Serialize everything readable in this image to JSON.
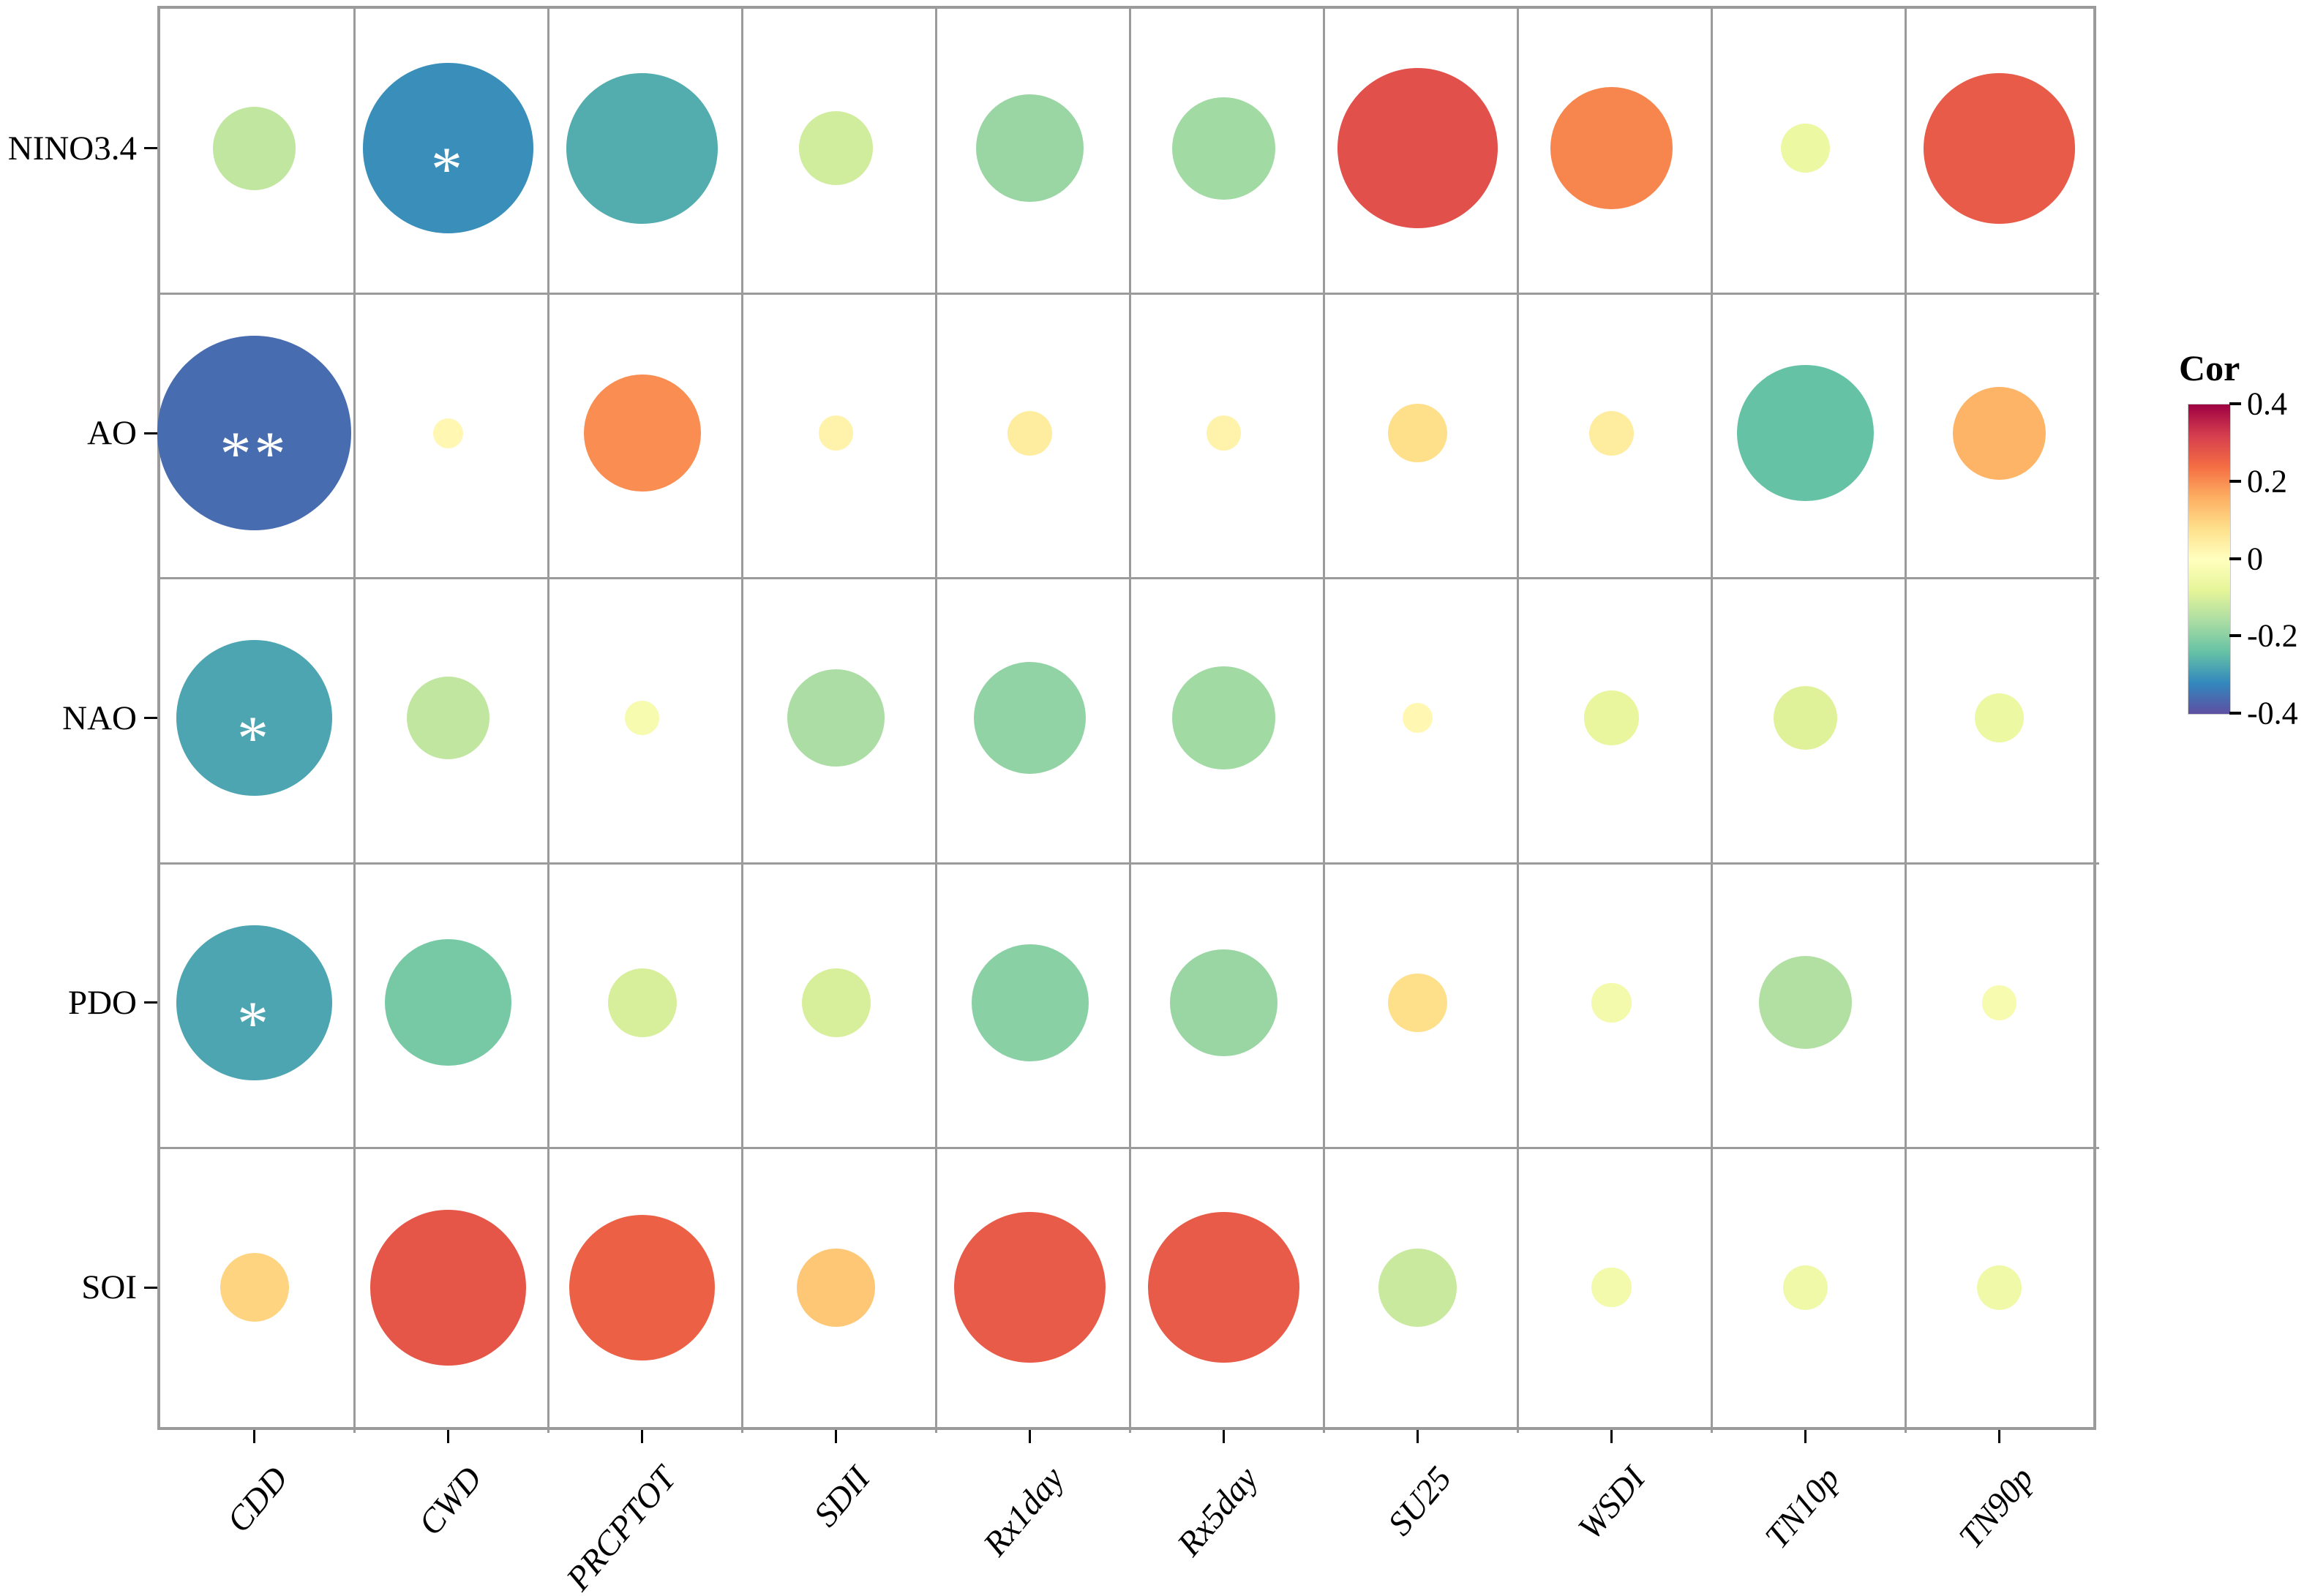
{
  "chart_data": {
    "type": "bubble-correlation-matrix",
    "title": "",
    "x_categories": [
      "CDD",
      "CWD",
      "PRCPTOT",
      "SDII",
      "Rx1day",
      "Rx5day",
      "SU25",
      "WSDI",
      "TN10p",
      "TN90p"
    ],
    "y_categories": [
      "NINO3.4",
      "AO",
      "NAO",
      "PDO",
      "SOI"
    ],
    "series": [
      {
        "name": "NINO3.4",
        "values": [
          -0.13,
          -0.31,
          -0.27,
          -0.11,
          -0.18,
          -0.17,
          0.29,
          0.21,
          -0.06,
          0.27
        ]
      },
      {
        "name": "AO",
        "values": [
          -0.36,
          0.02,
          0.2,
          0.03,
          0.05,
          0.03,
          0.08,
          0.05,
          -0.24,
          0.15
        ]
      },
      {
        "name": "NAO",
        "values": [
          -0.28,
          -0.13,
          -0.03,
          -0.16,
          -0.19,
          -0.17,
          0.02,
          -0.07,
          -0.09,
          -0.06
        ]
      },
      {
        "name": "PDO",
        "values": [
          -0.28,
          -0.22,
          -0.1,
          -0.1,
          -0.2,
          -0.18,
          0.08,
          -0.04,
          -0.15,
          -0.03
        ]
      },
      {
        "name": "SOI",
        "values": [
          0.1,
          0.28,
          0.26,
          0.12,
          0.27,
          0.27,
          -0.12,
          -0.04,
          -0.05,
          -0.05
        ]
      }
    ],
    "significance": [
      [
        "",
        "*",
        "",
        "",
        "",
        "",
        "",
        "",
        "",
        ""
      ],
      [
        "**",
        "",
        "",
        "",
        "",
        "",
        "",
        "",
        "",
        ""
      ],
      [
        "*",
        "",
        "",
        "",
        "",
        "",
        "",
        "",
        "",
        ""
      ],
      [
        "*",
        "",
        "",
        "",
        "",
        "",
        "",
        "",
        "",
        ""
      ],
      [
        "",
        "",
        "",
        "",
        "",
        "",
        "",
        "",
        "",
        ""
      ]
    ],
    "encoding": "circle color and size encode Pearson correlation; asterisks mark significance",
    "value_range": [
      -0.4,
      0.4
    ],
    "grid": "on",
    "legend": {
      "title": "Cor",
      "position": "right",
      "tick_labels": [
        "0.4",
        "0.2",
        "0",
        "-0.2",
        "-0.4"
      ],
      "max": 0.4,
      "min": -0.4,
      "colormap_name": "Spectral (reversed, +0.4 top)",
      "colormap_low_to_high": [
        "#5e4fa2",
        "#3288bd",
        "#66c2a5",
        "#abdda4",
        "#e6f598",
        "#ffffbf",
        "#fee08b",
        "#fdae61",
        "#f46d43",
        "#d53e4f",
        "#9e0142"
      ]
    },
    "panel_border_color": "#9b9b9b",
    "background_color": "#ffffff"
  }
}
